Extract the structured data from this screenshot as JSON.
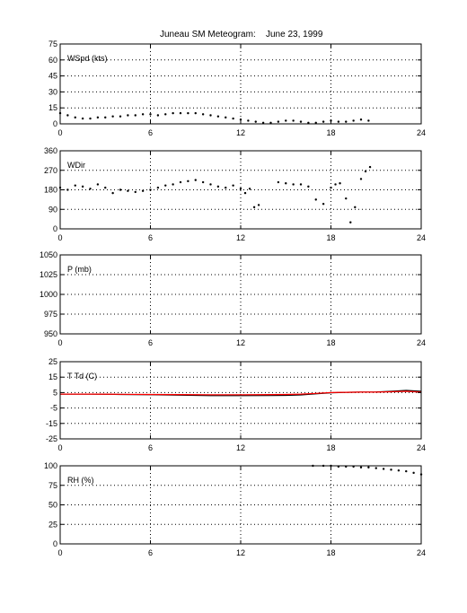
{
  "figure": {
    "title_left": "Juneau SM Meteogram:",
    "title_right": "June 23, 1999"
  },
  "chart_data": [
    {
      "type": "scatter",
      "panel_label": "WSpd (kts)",
      "xlim": [
        0,
        24
      ],
      "x_ticks": [
        0,
        6,
        12,
        18,
        24
      ],
      "ylim": [
        0,
        75
      ],
      "y_ticks": [
        0,
        15,
        30,
        45,
        60,
        75
      ],
      "grid": true,
      "series": [
        {
          "color": "#000000",
          "x": [
            0,
            0.5,
            1,
            1.5,
            2,
            2.5,
            3,
            3.5,
            4,
            4.5,
            5,
            5.5,
            6,
            6.5,
            7,
            7.5,
            8,
            8.5,
            9,
            9.5,
            10,
            10.5,
            11,
            11.5,
            12,
            12.5,
            13,
            13.5,
            14,
            14.5,
            15,
            15.5,
            16,
            16.5,
            17,
            17.5,
            18,
            18.5,
            19,
            19.5,
            20,
            20.5
          ],
          "y": [
            10,
            8,
            6,
            5,
            5,
            6,
            6,
            7,
            7,
            8,
            8,
            9,
            9,
            8,
            9,
            10,
            10,
            10,
            10,
            9,
            8,
            7,
            6,
            5,
            4,
            3,
            2,
            1,
            1,
            2,
            3,
            3,
            2,
            1,
            1,
            2,
            3,
            2,
            2,
            3,
            4,
            3
          ]
        }
      ]
    },
    {
      "type": "scatter",
      "panel_label": "WDir",
      "xlim": [
        0,
        24
      ],
      "x_ticks": [
        0,
        6,
        12,
        18,
        24
      ],
      "ylim": [
        0,
        360
      ],
      "y_ticks": [
        0,
        90,
        180,
        270,
        360
      ],
      "grid": true,
      "series": [
        {
          "color": "#000000",
          "x": [
            0,
            0.5,
            1,
            1.5,
            2,
            2.5,
            3,
            3.5,
            4,
            4.5,
            5,
            5.5,
            6,
            6.5,
            7,
            7.5,
            8,
            8.5,
            9,
            9.5,
            10,
            10.5,
            11,
            11.5,
            12,
            12.3,
            12.6,
            12.9,
            13.2,
            14.5,
            15,
            15.5,
            16,
            16.5,
            17,
            17.5,
            18,
            18.3,
            18.6,
            19,
            19.3,
            19.6,
            20,
            20.3,
            20.6
          ],
          "y": [
            190,
            180,
            200,
            195,
            185,
            205,
            190,
            165,
            180,
            175,
            170,
            175,
            180,
            190,
            200,
            205,
            215,
            220,
            225,
            215,
            205,
            195,
            190,
            200,
            185,
            165,
            185,
            100,
            110,
            215,
            210,
            205,
            205,
            195,
            135,
            115,
            190,
            205,
            210,
            140,
            30,
            100,
            230,
            265,
            285
          ]
        }
      ]
    },
    {
      "type": "line",
      "panel_label": "P (mb)",
      "xlim": [
        0,
        24
      ],
      "x_ticks": [
        0,
        6,
        12,
        18,
        24
      ],
      "ylim": [
        950,
        1050
      ],
      "y_ticks": [
        950,
        975,
        1000,
        1025,
        1050
      ],
      "grid": true,
      "series": []
    },
    {
      "type": "line",
      "panel_label": "T Td (C)",
      "xlim": [
        0,
        24
      ],
      "x_ticks": [
        0,
        6,
        12,
        18,
        24
      ],
      "ylim": [
        -25,
        25
      ],
      "y_ticks": [
        -25,
        -15,
        -5,
        5,
        15,
        25
      ],
      "grid": true,
      "series": [
        {
          "color": "#000000",
          "x": [
            0,
            2,
            4,
            6,
            8,
            10,
            12,
            14,
            15,
            16,
            17,
            18,
            19,
            20,
            21,
            22,
            23,
            24
          ],
          "y": [
            4,
            4,
            3.8,
            3.6,
            3.3,
            3.0,
            3.0,
            3.1,
            3.2,
            3.5,
            4.2,
            4.8,
            5.2,
            5.3,
            5.4,
            5.8,
            6.4,
            5.8
          ]
        },
        {
          "color": "#ff0000",
          "x": [
            0,
            2,
            4,
            6,
            8,
            10,
            12,
            14,
            15,
            16,
            17,
            18,
            19,
            20,
            21,
            22,
            23,
            24
          ],
          "y": [
            4,
            4,
            3.9,
            3.8,
            3.7,
            3.6,
            3.6,
            3.7,
            3.8,
            4.0,
            4.5,
            5.0,
            5.2,
            5.3,
            5.3,
            5.5,
            5.8,
            5.3
          ]
        }
      ]
    },
    {
      "type": "scatter",
      "panel_label": "RH (%)",
      "xlim": [
        0,
        24
      ],
      "x_ticks": [
        0,
        6,
        12,
        18,
        24
      ],
      "ylim": [
        0,
        100
      ],
      "y_ticks": [
        0,
        25,
        50,
        75,
        100
      ],
      "grid": true,
      "series": [
        {
          "color": "#000000",
          "x": [
            16.8,
            17.5,
            18,
            18.5,
            19,
            19.5,
            20,
            20.5,
            21,
            21.5,
            22,
            22.5,
            23,
            23.5,
            24
          ],
          "y": [
            100,
            100,
            100,
            99,
            99,
            99,
            98,
            98,
            97,
            96,
            95,
            94,
            93,
            91,
            89
          ]
        }
      ]
    }
  ]
}
